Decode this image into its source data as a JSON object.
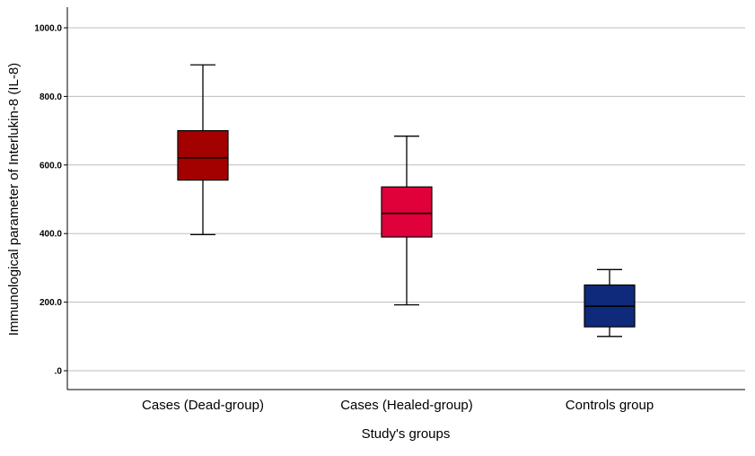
{
  "chart_data": {
    "type": "boxplot",
    "xlabel": "Study's groups",
    "ylabel": "Immunological parameter of Interlukin-8 (IL-8)",
    "ylim": [
      -50,
      1060
    ],
    "yticks": [
      0,
      200,
      400,
      600,
      800,
      1000
    ],
    "ytick_labels": [
      ".0",
      "200.0",
      "400.0",
      "600.0",
      "800.0",
      "1000.0"
    ],
    "grid": true,
    "categories": [
      "Cases (Dead-group)",
      "Cases (Healed-group)",
      "Controls group"
    ],
    "boxes": [
      {
        "category": "Cases (Dead-group)",
        "min": 397,
        "q1": 556,
        "median": 621,
        "q3": 700,
        "max": 892,
        "color": "#a30000"
      },
      {
        "category": "Cases (Healed-group)",
        "min": 192,
        "q1": 390,
        "median": 459,
        "q3": 536,
        "max": 684,
        "color": "#e0003a"
      },
      {
        "category": "Controls group",
        "min": 100,
        "q1": 128,
        "median": 188,
        "q3": 250,
        "max": 295,
        "color": "#0f2a7a"
      }
    ]
  }
}
